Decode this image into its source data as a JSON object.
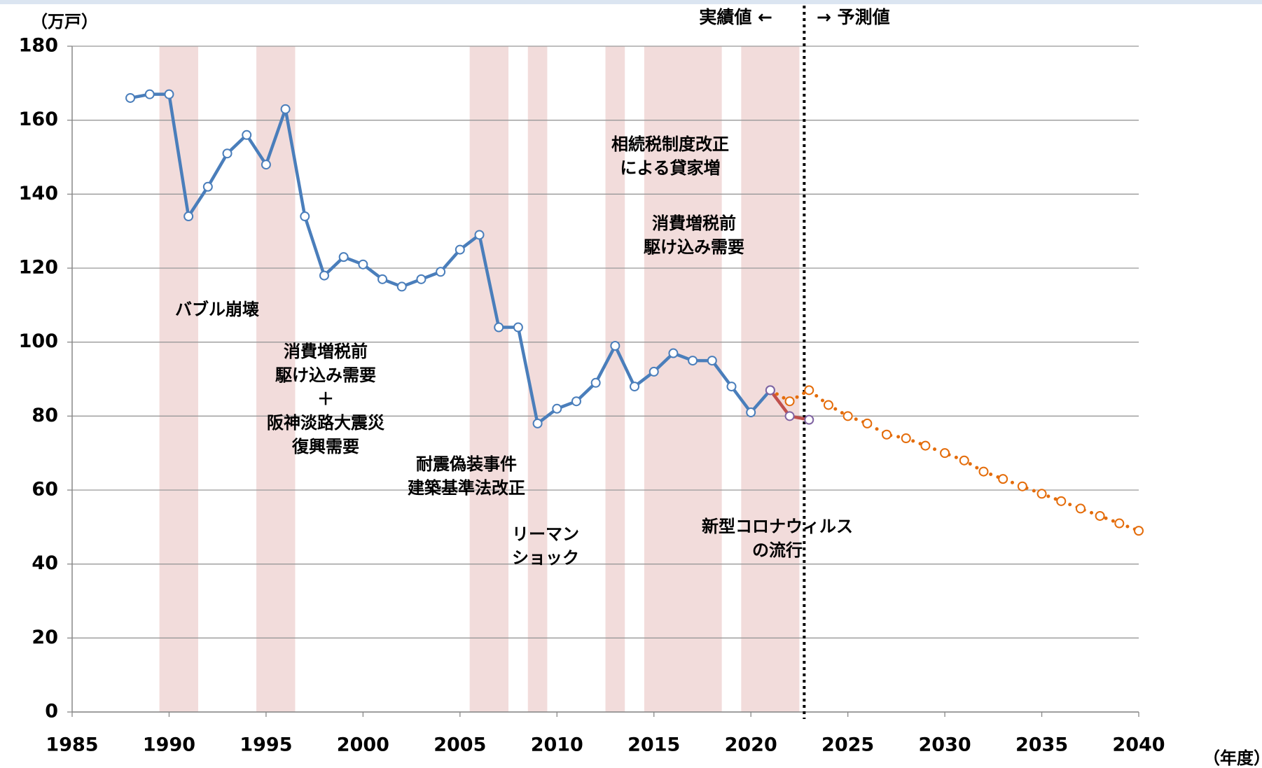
{
  "chart_data": {
    "type": "line",
    "y_unit_label": "（万戸）",
    "x_unit_label": "（年度）",
    "actual_label": "実績値 ←",
    "forecast_label": "→ 予測値",
    "xlim": [
      1985,
      2040
    ],
    "xticks": [
      1985,
      1990,
      1995,
      2000,
      2005,
      2010,
      2015,
      2020,
      2025,
      2030,
      2035,
      2040
    ],
    "ylim": [
      0,
      180
    ],
    "yticks": [
      0,
      20,
      40,
      60,
      80,
      100,
      120,
      140,
      160,
      180
    ],
    "grid": true,
    "forecast_start": 2022.75,
    "bands": [
      [
        1989.5,
        1991.5
      ],
      [
        1994.5,
        1996.5
      ],
      [
        2005.5,
        2007.5
      ],
      [
        2008.5,
        2009.5
      ],
      [
        2012.5,
        2013.5
      ],
      [
        2014.5,
        2018.5
      ],
      [
        2019.5,
        2022.5
      ]
    ],
    "band_color": "#f2dcdb",
    "series": [
      {
        "color": "#4a7ebb",
        "dash": false,
        "marker": "#4a7ebb",
        "x": [
          1988,
          1989,
          1990,
          1991,
          1992,
          1993,
          1994,
          1995,
          1996,
          1997,
          1998,
          1999,
          2000,
          2001,
          2002,
          2003,
          2004,
          2005,
          2006,
          2007,
          2008,
          2009,
          2010,
          2011,
          2012,
          2013,
          2014,
          2015,
          2016,
          2017,
          2018,
          2019,
          2020,
          2021
        ],
        "values": [
          166,
          167,
          167,
          134,
          142,
          151,
          156,
          148,
          163,
          134,
          118,
          123,
          121,
          117,
          115,
          117,
          119,
          125,
          129,
          104,
          104,
          78,
          82,
          84,
          89,
          99,
          88,
          92,
          97,
          95,
          95,
          88,
          81,
          87
        ]
      },
      {
        "color": "#e46c0a",
        "dash": true,
        "marker": "#e46c0a",
        "x": [
          2021,
          2022,
          2023,
          2024,
          2025,
          2026,
          2027,
          2028,
          2029,
          2030,
          2031,
          2032,
          2033,
          2034,
          2035,
          2036,
          2037,
          2038,
          2039,
          2040
        ],
        "values": [
          87,
          84,
          87,
          83,
          80,
          78,
          75,
          74,
          72,
          70,
          68,
          65,
          63,
          61,
          59,
          57,
          55,
          53,
          51,
          49
        ]
      },
      {
        "color": "#c0504d",
        "dash": false,
        "marker": "#8064a2",
        "x": [
          2021,
          2022,
          2023
        ],
        "values": [
          87,
          80,
          79
        ]
      }
    ],
    "annotations": [
      [
        "バブル崩壊"
      ],
      [
        "消費増税前",
        "駆け込み需要",
        "＋",
        "阪神淡路大震災",
        "復興需要"
      ],
      [
        "耐震偽装事件",
        "建築基準法改正"
      ],
      [
        "リーマン",
        "ショック"
      ],
      [
        "相続税制度改正",
        "による貸家増"
      ],
      [
        "消費増税前",
        "駆け込み需要"
      ],
      [
        "新型コロナウィルス",
        "の流行"
      ]
    ]
  }
}
